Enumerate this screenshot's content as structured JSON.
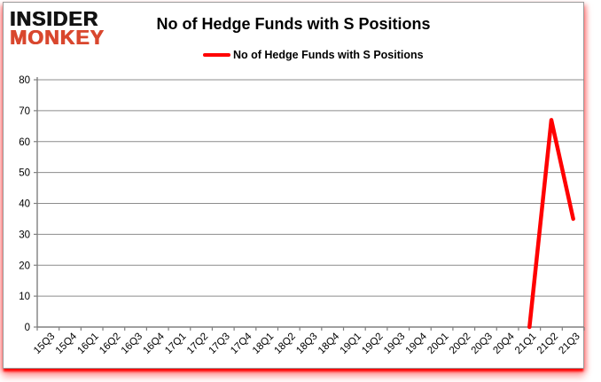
{
  "logo": {
    "line1": "INSIDER",
    "line2": "MONKEY"
  },
  "header": {
    "title": "No of Hedge Funds with S Positions"
  },
  "legend": {
    "label": "No of Hedge Funds with S Positions",
    "swatch_color": "#FF0000"
  },
  "chart_data": {
    "type": "line",
    "title": "No of Hedge Funds with S Positions",
    "categories": [
      "15Q3",
      "15Q4",
      "16Q1",
      "16Q2",
      "16Q3",
      "16Q4",
      "17Q1",
      "17Q2",
      "17Q3",
      "17Q4",
      "18Q1",
      "18Q2",
      "18Q3",
      "18Q4",
      "19Q1",
      "19Q2",
      "19Q3",
      "19Q4",
      "20Q1",
      "20Q2",
      "20Q3",
      "20Q4",
      "21Q1",
      "21Q2",
      "21Q3"
    ],
    "series": [
      {
        "name": "No of Hedge Funds with S Positions",
        "color": "#FF0000",
        "values": [
          null,
          null,
          null,
          null,
          null,
          null,
          null,
          null,
          null,
          null,
          null,
          null,
          null,
          null,
          null,
          null,
          null,
          null,
          null,
          null,
          null,
          null,
          0,
          67,
          35
        ]
      }
    ],
    "xlabel": "",
    "ylabel": "",
    "ylim": [
      0,
      80
    ],
    "yticks": [
      0,
      10,
      20,
      30,
      40,
      50,
      60,
      70,
      80
    ],
    "grid": true,
    "legend_position": "top"
  },
  "colors": {
    "line": "#FF0000",
    "grid": "#8c8c8c",
    "axis": "#808080",
    "tick_text": "#000000",
    "logo_black": "#121212",
    "logo_red": "#d9472e",
    "frame_glow": "#ff3b3b"
  }
}
